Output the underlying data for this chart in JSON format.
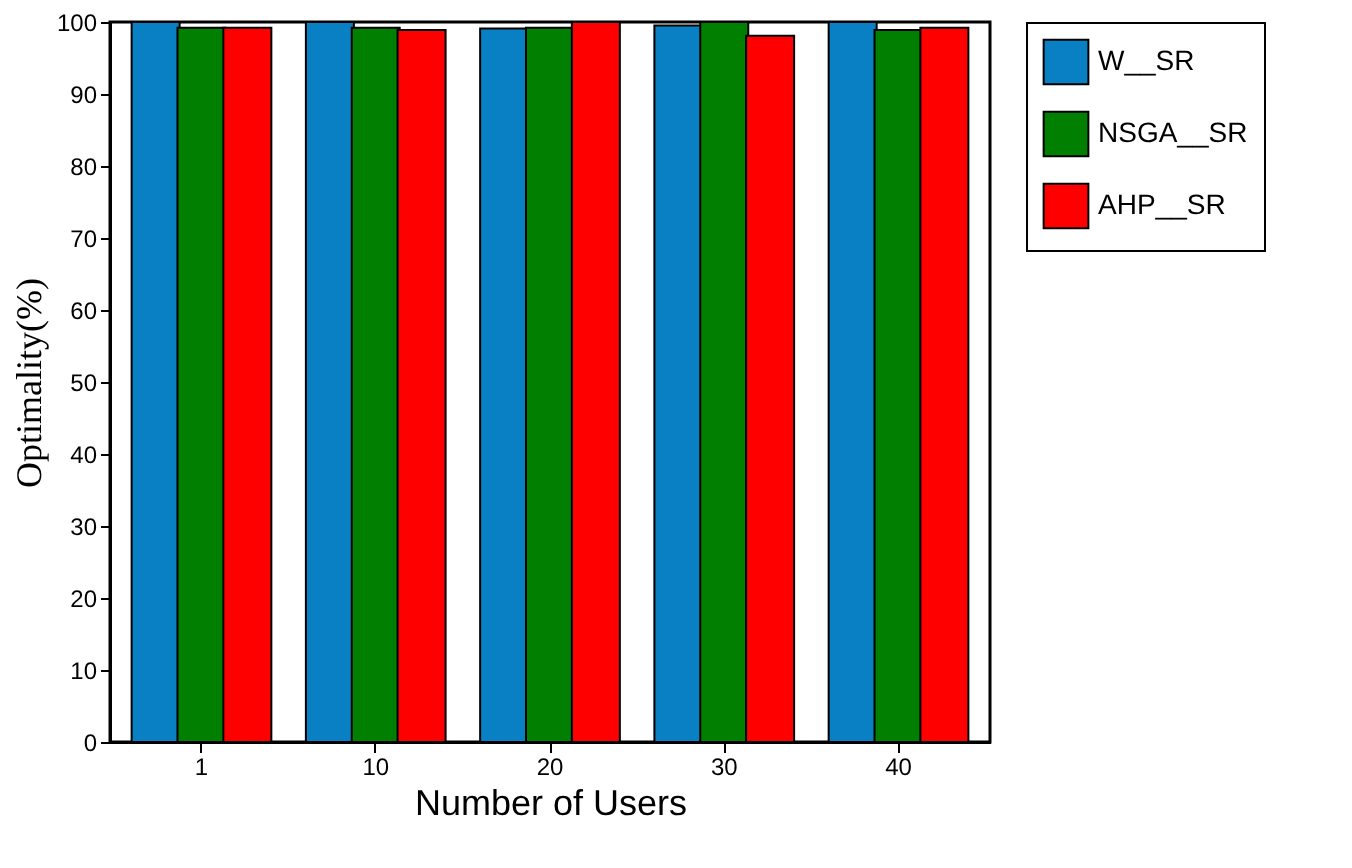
{
  "chart_data": {
    "type": "bar",
    "xlabel": "Number of Users",
    "ylabel": "Optimality(%)",
    "categories": [
      "1",
      "10",
      "20",
      "30",
      "40"
    ],
    "series": [
      {
        "name": "W__SR",
        "color": "#0a80c4",
        "values": [
          100,
          100,
          99.1,
          99.5,
          100
        ]
      },
      {
        "name": "NSGA__SR",
        "color": "#007f00",
        "values": [
          99.2,
          99.2,
          99.2,
          100,
          98.9
        ]
      },
      {
        "name": "AHP__SR",
        "color": "#ff0000",
        "values": [
          99.2,
          98.9,
          100,
          98.1,
          99.2
        ]
      }
    ],
    "ylim": [
      0,
      100
    ],
    "yticks": [
      0,
      10,
      20,
      30,
      40,
      50,
      60,
      70,
      80,
      90,
      100
    ],
    "grid": false,
    "legend": "right"
  }
}
